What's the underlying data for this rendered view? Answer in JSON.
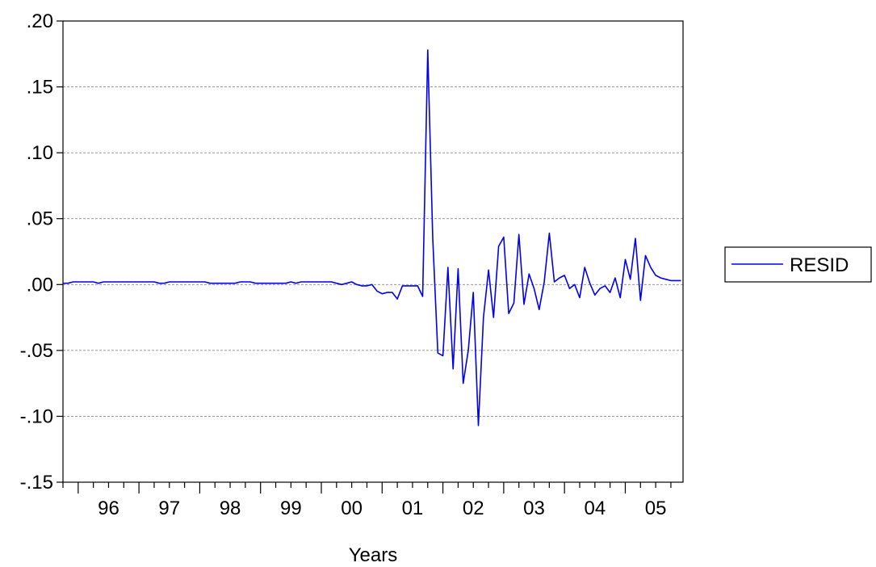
{
  "chart_data": {
    "type": "line",
    "title": "",
    "xlabel": "Years",
    "ylabel": "",
    "ylim": [
      -0.15,
      0.2
    ],
    "xlim": [
      1995.75,
      2005.95
    ],
    "y_ticks": [
      -0.15,
      -0.1,
      -0.05,
      0.0,
      0.05,
      0.1,
      0.15,
      0.2
    ],
    "y_tick_labels": [
      "-.15",
      "-.10",
      "-.05",
      ".00",
      ".05",
      ".10",
      ".15",
      ".20"
    ],
    "x_ticks": [
      1996,
      1997,
      1998,
      1999,
      2000,
      2001,
      2002,
      2003,
      2004,
      2005
    ],
    "x_tick_labels": [
      "96",
      "97",
      "98",
      "99",
      "00",
      "01",
      "02",
      "03",
      "04",
      "05"
    ],
    "grid": {
      "horizontal": true,
      "vertical": false,
      "style": "dashed"
    },
    "legend": {
      "position": "right",
      "entries": [
        "RESID"
      ]
    },
    "series": [
      {
        "name": "RESID",
        "color": "#0000ee",
        "x": [
          1995.75,
          1995.833,
          1995.917,
          1996.0,
          1996.083,
          1996.167,
          1996.25,
          1996.333,
          1996.417,
          1996.5,
          1996.583,
          1996.667,
          1996.75,
          1996.833,
          1996.917,
          1997.0,
          1997.083,
          1997.167,
          1997.25,
          1997.333,
          1997.417,
          1997.5,
          1997.583,
          1997.667,
          1997.75,
          1997.833,
          1997.917,
          1998.0,
          1998.083,
          1998.167,
          1998.25,
          1998.333,
          1998.417,
          1998.5,
          1998.583,
          1998.667,
          1998.75,
          1998.833,
          1998.917,
          1999.0,
          1999.083,
          1999.167,
          1999.25,
          1999.333,
          1999.417,
          1999.5,
          1999.583,
          1999.667,
          1999.75,
          1999.833,
          1999.917,
          2000.0,
          2000.083,
          2000.167,
          2000.25,
          2000.333,
          2000.417,
          2000.5,
          2000.583,
          2000.667,
          2000.75,
          2000.833,
          2000.917,
          2001.0,
          2001.083,
          2001.167,
          2001.25,
          2001.333,
          2001.417,
          2001.5,
          2001.583,
          2001.667,
          2001.75,
          2001.833,
          2001.917,
          2002.0,
          2002.083,
          2002.167,
          2002.25,
          2002.333,
          2002.417,
          2002.5,
          2002.583,
          2002.667,
          2002.75,
          2002.833,
          2002.917,
          2003.0,
          2003.083,
          2003.167,
          2003.25,
          2003.333,
          2003.417,
          2003.5,
          2003.583,
          2003.667,
          2003.75,
          2003.833,
          2003.917,
          2004.0,
          2004.083,
          2004.167,
          2004.25,
          2004.333,
          2004.417,
          2004.5,
          2004.583,
          2004.667,
          2004.75,
          2004.833,
          2004.917,
          2005.0,
          2005.083,
          2005.167,
          2005.25,
          2005.333,
          2005.417,
          2005.5,
          2005.583,
          2005.667,
          2005.75,
          2005.833,
          2005.917
        ],
        "y": [
          0.001,
          0.001,
          0.002,
          0.002,
          0.002,
          0.002,
          0.002,
          0.001,
          0.002,
          0.002,
          0.002,
          0.002,
          0.002,
          0.002,
          0.002,
          0.002,
          0.002,
          0.002,
          0.002,
          0.001,
          0.001,
          0.002,
          0.002,
          0.002,
          0.002,
          0.002,
          0.002,
          0.002,
          0.002,
          0.001,
          0.001,
          0.001,
          0.001,
          0.001,
          0.001,
          0.002,
          0.002,
          0.002,
          0.001,
          0.001,
          0.001,
          0.001,
          0.001,
          0.001,
          0.001,
          0.002,
          0.001,
          0.002,
          0.002,
          0.002,
          0.002,
          0.002,
          0.002,
          0.002,
          0.001,
          0.0,
          0.001,
          0.002,
          0.0,
          -0.001,
          -0.001,
          0.0,
          -0.005,
          -0.007,
          -0.006,
          -0.006,
          -0.011,
          -0.001,
          -0.001,
          -0.001,
          -0.001,
          -0.009,
          0.178,
          0.035,
          -0.052,
          -0.054,
          0.013,
          -0.064,
          0.012,
          -0.075,
          -0.05,
          -0.006,
          -0.107,
          -0.025,
          0.011,
          -0.025,
          0.029,
          0.036,
          -0.022,
          -0.014,
          0.038,
          -0.015,
          0.008,
          -0.003,
          -0.019,
          0.002,
          0.039,
          0.002,
          0.005,
          0.007,
          -0.003,
          0.0,
          -0.01,
          0.013,
          0.001,
          -0.008,
          -0.003,
          -0.001,
          -0.006,
          0.005,
          -0.01,
          0.019,
          0.004,
          0.035,
          -0.012,
          0.022,
          0.013,
          0.007,
          0.005,
          0.004,
          0.003,
          0.003,
          0.003
        ]
      }
    ]
  }
}
